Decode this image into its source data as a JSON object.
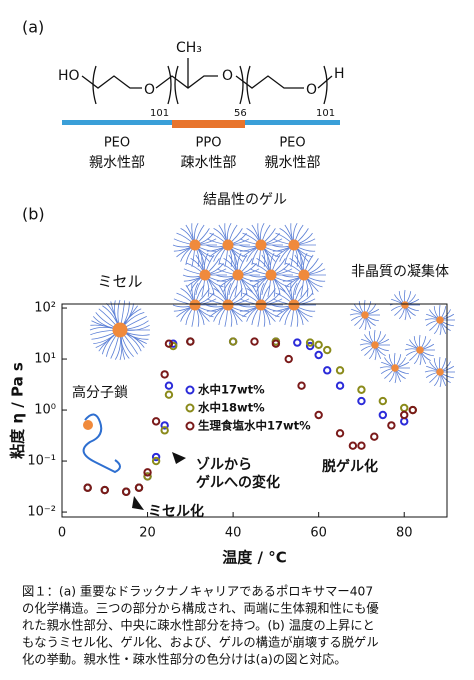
{
  "panel_a": {
    "label": "(a)",
    "atoms": {
      "left": "HO",
      "oxygens": [
        "O",
        "O",
        "O"
      ],
      "methyl": "CH₃",
      "right": "H"
    },
    "repeats": [
      "101",
      "56",
      "101"
    ],
    "blocks": [
      {
        "name": "PEO",
        "role": "親水性部",
        "color": "#3a9fd8"
      },
      {
        "name": "PPO",
        "role": "疎水性部",
        "color": "#e8742c"
      },
      {
        "name": "PEO",
        "role": "親水性部",
        "color": "#3a9fd8"
      }
    ]
  },
  "chart_data": {
    "type": "scatter",
    "panel_label": "(b)",
    "xlabel": "温度 / °C",
    "ylabel": "粘度 η / Pa s",
    "xlim": [
      0,
      90
    ],
    "xticks": [
      0,
      20,
      40,
      60,
      80
    ],
    "ylim": [
      0.008,
      120
    ],
    "log_y": true,
    "yticks": [
      {
        "value": 0.01,
        "label": "10⁻²"
      },
      {
        "value": 0.1,
        "label": "10⁻¹"
      },
      {
        "value": 1,
        "label": "10⁰"
      },
      {
        "value": 10,
        "label": "10¹"
      },
      {
        "value": 100,
        "label": "10²"
      }
    ],
    "legend": "upper left",
    "series": [
      {
        "name": "水中17wt%",
        "color": "#2b2bd9",
        "x": [
          6,
          10,
          15,
          18,
          20,
          22,
          24,
          25,
          26,
          30,
          40,
          50,
          55,
          58,
          60,
          62,
          65,
          70,
          75,
          80
        ],
        "values": [
          0.03,
          0.027,
          0.025,
          0.03,
          0.05,
          0.12,
          0.5,
          3,
          20,
          22,
          22,
          22,
          21,
          18,
          12,
          6,
          3,
          1.5,
          0.8,
          0.6
        ]
      },
      {
        "name": "水中18wt%",
        "color": "#8a8a1a",
        "x": [
          6,
          10,
          15,
          18,
          20,
          22,
          24,
          25,
          26,
          30,
          40,
          50,
          58,
          60,
          62,
          65,
          70,
          75,
          80,
          82
        ],
        "values": [
          0.03,
          0.027,
          0.025,
          0.03,
          0.05,
          0.1,
          0.4,
          2,
          18,
          22,
          22,
          22,
          21,
          19,
          15,
          6,
          2.5,
          1.5,
          1.1,
          1.0
        ]
      },
      {
        "name": "生理食塩水中17wt%",
        "color": "#7a1a1a",
        "x": [
          6,
          10,
          15,
          18,
          20,
          22,
          24,
          25,
          30,
          45,
          50,
          53,
          56,
          60,
          65,
          68,
          70,
          73,
          77,
          80,
          82
        ],
        "values": [
          0.03,
          0.027,
          0.025,
          0.03,
          0.06,
          0.6,
          5,
          20,
          22,
          22,
          20,
          10,
          3,
          0.8,
          0.35,
          0.2,
          0.2,
          0.3,
          0.5,
          0.8,
          1.0
        ]
      }
    ],
    "annotations": [
      "ミセル",
      "結晶性のゲル",
      "非晶質の凝集体",
      "高分子鎖",
      "ゾルから",
      "ゲルへの変化",
      "ミセル化",
      "脱ゲル化"
    ]
  },
  "caption": [
    "図１：(a) 重要なドラックナノキャリアであるポロキサマー407",
    "の化学構造。三つの部分から構成され、両端に生体親和性にも優",
    "れた親水性部分、中央に疎水性部分を持つ。(b) 温度の上昇にと",
    "もなうミセル化、ゲル化、および、ゲルの構造が崩壊する脱ゲル",
    "化の挙動。親水性・疎水性部分の色分けは(a)の図と対応。"
  ]
}
